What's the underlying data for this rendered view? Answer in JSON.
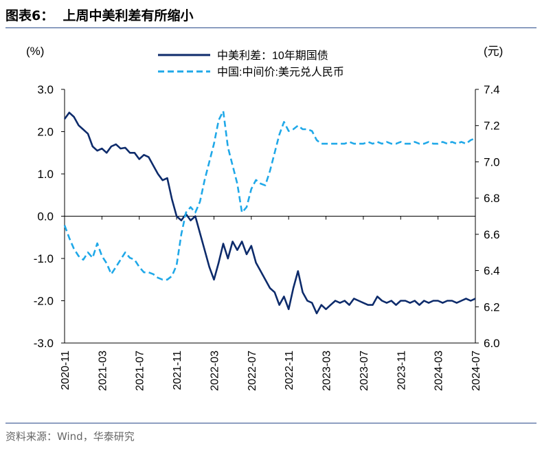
{
  "figure": {
    "title": "图表6：  上周中美利差有所缩小",
    "source": "资料来源：Wind，华泰研究"
  },
  "chart_data": {
    "type": "line",
    "title": "上周中美利差有所缩小",
    "left_axis": {
      "unit_label": "(%)",
      "ylim": [
        -3.0,
        3.0
      ],
      "ticks": [
        "3.0",
        "2.0",
        "1.0",
        "0.0",
        "-1.0",
        "-2.0",
        "-3.0"
      ]
    },
    "right_axis": {
      "unit_label": "(元)",
      "ylim": [
        6.0,
        7.4
      ],
      "ticks": [
        "7.4",
        "7.2",
        "7.0",
        "6.8",
        "6.6",
        "6.4",
        "6.2",
        "6.0"
      ]
    },
    "x_ticks": [
      "2020-11",
      "2021-03",
      "2021-07",
      "2021-11",
      "2022-03",
      "2022-07",
      "2022-11",
      "2023-03",
      "2023-07",
      "2023-11",
      "2024-03",
      "2024-07"
    ],
    "x_range": [
      0,
      44
    ],
    "series": [
      {
        "name": "中美利差：10年期国债",
        "axis": "left",
        "style": "solid",
        "color": "#0d2b6b",
        "x": [
          0,
          0.5,
          1,
          1.5,
          2,
          2.5,
          3,
          3.5,
          4,
          4.5,
          5,
          5.5,
          6,
          6.5,
          7,
          7.5,
          8,
          8.5,
          9,
          9.5,
          10,
          10.5,
          11,
          11.5,
          12,
          12.5,
          13,
          13.5,
          14,
          14.5,
          15,
          15.5,
          16,
          16.5,
          17,
          17.5,
          18,
          18.5,
          19,
          19.5,
          20,
          20.5,
          21,
          21.5,
          22,
          22.5,
          23,
          23.5,
          24,
          24.5,
          25,
          25.5,
          26,
          26.5,
          27,
          27.5,
          28,
          28.5,
          29,
          29.5,
          30,
          30.5,
          31,
          31.5,
          32,
          32.5,
          33,
          33.5,
          34,
          34.5,
          35,
          35.5,
          36,
          36.5,
          37,
          37.5,
          38,
          38.5,
          39,
          39.5,
          40,
          40.5,
          41,
          41.5,
          42,
          42.5,
          43,
          43.5,
          44
        ],
        "values": [
          2.3,
          2.45,
          2.35,
          2.15,
          2.05,
          1.95,
          1.65,
          1.55,
          1.6,
          1.5,
          1.65,
          1.7,
          1.6,
          1.62,
          1.5,
          1.5,
          1.35,
          1.45,
          1.4,
          1.2,
          1.0,
          0.85,
          0.9,
          0.4,
          0.0,
          -0.1,
          0.05,
          -0.1,
          0.0,
          -0.4,
          -0.8,
          -1.2,
          -1.5,
          -1.1,
          -0.65,
          -1.0,
          -0.6,
          -0.8,
          -0.6,
          -0.9,
          -0.7,
          -1.1,
          -1.3,
          -1.5,
          -1.7,
          -1.8,
          -2.1,
          -1.9,
          -2.2,
          -1.7,
          -1.3,
          -1.8,
          -2.0,
          -2.05,
          -2.3,
          -2.1,
          -2.2,
          -2.1,
          -2.0,
          -2.05,
          -2.0,
          -2.1,
          -1.95,
          -2.0,
          -2.05,
          -2.1,
          -2.1,
          -1.9,
          -2.0,
          -2.05,
          -2.0,
          -2.1,
          -2.0,
          -2.0,
          -2.05,
          -2.0,
          -2.1,
          -2.0,
          -2.05,
          -2.0,
          -2.0,
          -2.05,
          -2.0,
          -2.0,
          -2.05,
          -2.0,
          -1.95,
          -2.0,
          -1.95
        ]
      },
      {
        "name": "中国:中间价:美元兑人民币",
        "axis": "right",
        "style": "dashed",
        "color": "#1fa8e8",
        "x": [
          0,
          0.5,
          1,
          1.5,
          2,
          2.5,
          3,
          3.5,
          4,
          4.5,
          5,
          5.5,
          6,
          6.5,
          7,
          7.5,
          8,
          8.5,
          9,
          9.5,
          10,
          10.5,
          11,
          11.5,
          12,
          12.5,
          13,
          13.5,
          14,
          14.5,
          15,
          15.5,
          16,
          16.5,
          17,
          17.5,
          18,
          18.5,
          19,
          19.5,
          20,
          20.5,
          21,
          21.5,
          22,
          22.5,
          23,
          23.5,
          24,
          24.5,
          25,
          25.5,
          26,
          26.5,
          27,
          27.5,
          28,
          28.5,
          29,
          29.5,
          30,
          30.5,
          31,
          31.5,
          32,
          32.5,
          33,
          33.5,
          34,
          34.5,
          35,
          35.5,
          36,
          36.5,
          37,
          37.5,
          38,
          38.5,
          39,
          39.5,
          40,
          40.5,
          41,
          41.5,
          42,
          42.5,
          43,
          43.5,
          44
        ],
        "values": [
          6.65,
          6.58,
          6.52,
          6.48,
          6.46,
          6.5,
          6.47,
          6.55,
          6.48,
          6.44,
          6.38,
          6.42,
          6.46,
          6.5,
          6.47,
          6.46,
          6.42,
          6.39,
          6.39,
          6.38,
          6.36,
          6.35,
          6.35,
          6.37,
          6.43,
          6.6,
          6.72,
          6.75,
          6.72,
          6.78,
          6.9,
          7.0,
          7.1,
          7.23,
          7.28,
          7.08,
          6.98,
          6.88,
          6.72,
          6.75,
          6.85,
          6.9,
          6.88,
          6.87,
          6.95,
          7.05,
          7.15,
          7.22,
          7.17,
          7.18,
          7.2,
          7.18,
          7.18,
          7.17,
          7.12,
          7.1,
          7.1,
          7.1,
          7.1,
          7.1,
          7.1,
          7.11,
          7.1,
          7.1,
          7.1,
          7.11,
          7.1,
          7.11,
          7.1,
          7.11,
          7.1,
          7.1,
          7.11,
          7.1,
          7.1,
          7.11,
          7.1,
          7.1,
          7.11,
          7.1,
          7.1,
          7.11,
          7.1,
          7.11,
          7.1,
          7.11,
          7.1,
          7.12,
          7.13
        ]
      }
    ],
    "legend": {
      "placement": "top-center"
    }
  }
}
